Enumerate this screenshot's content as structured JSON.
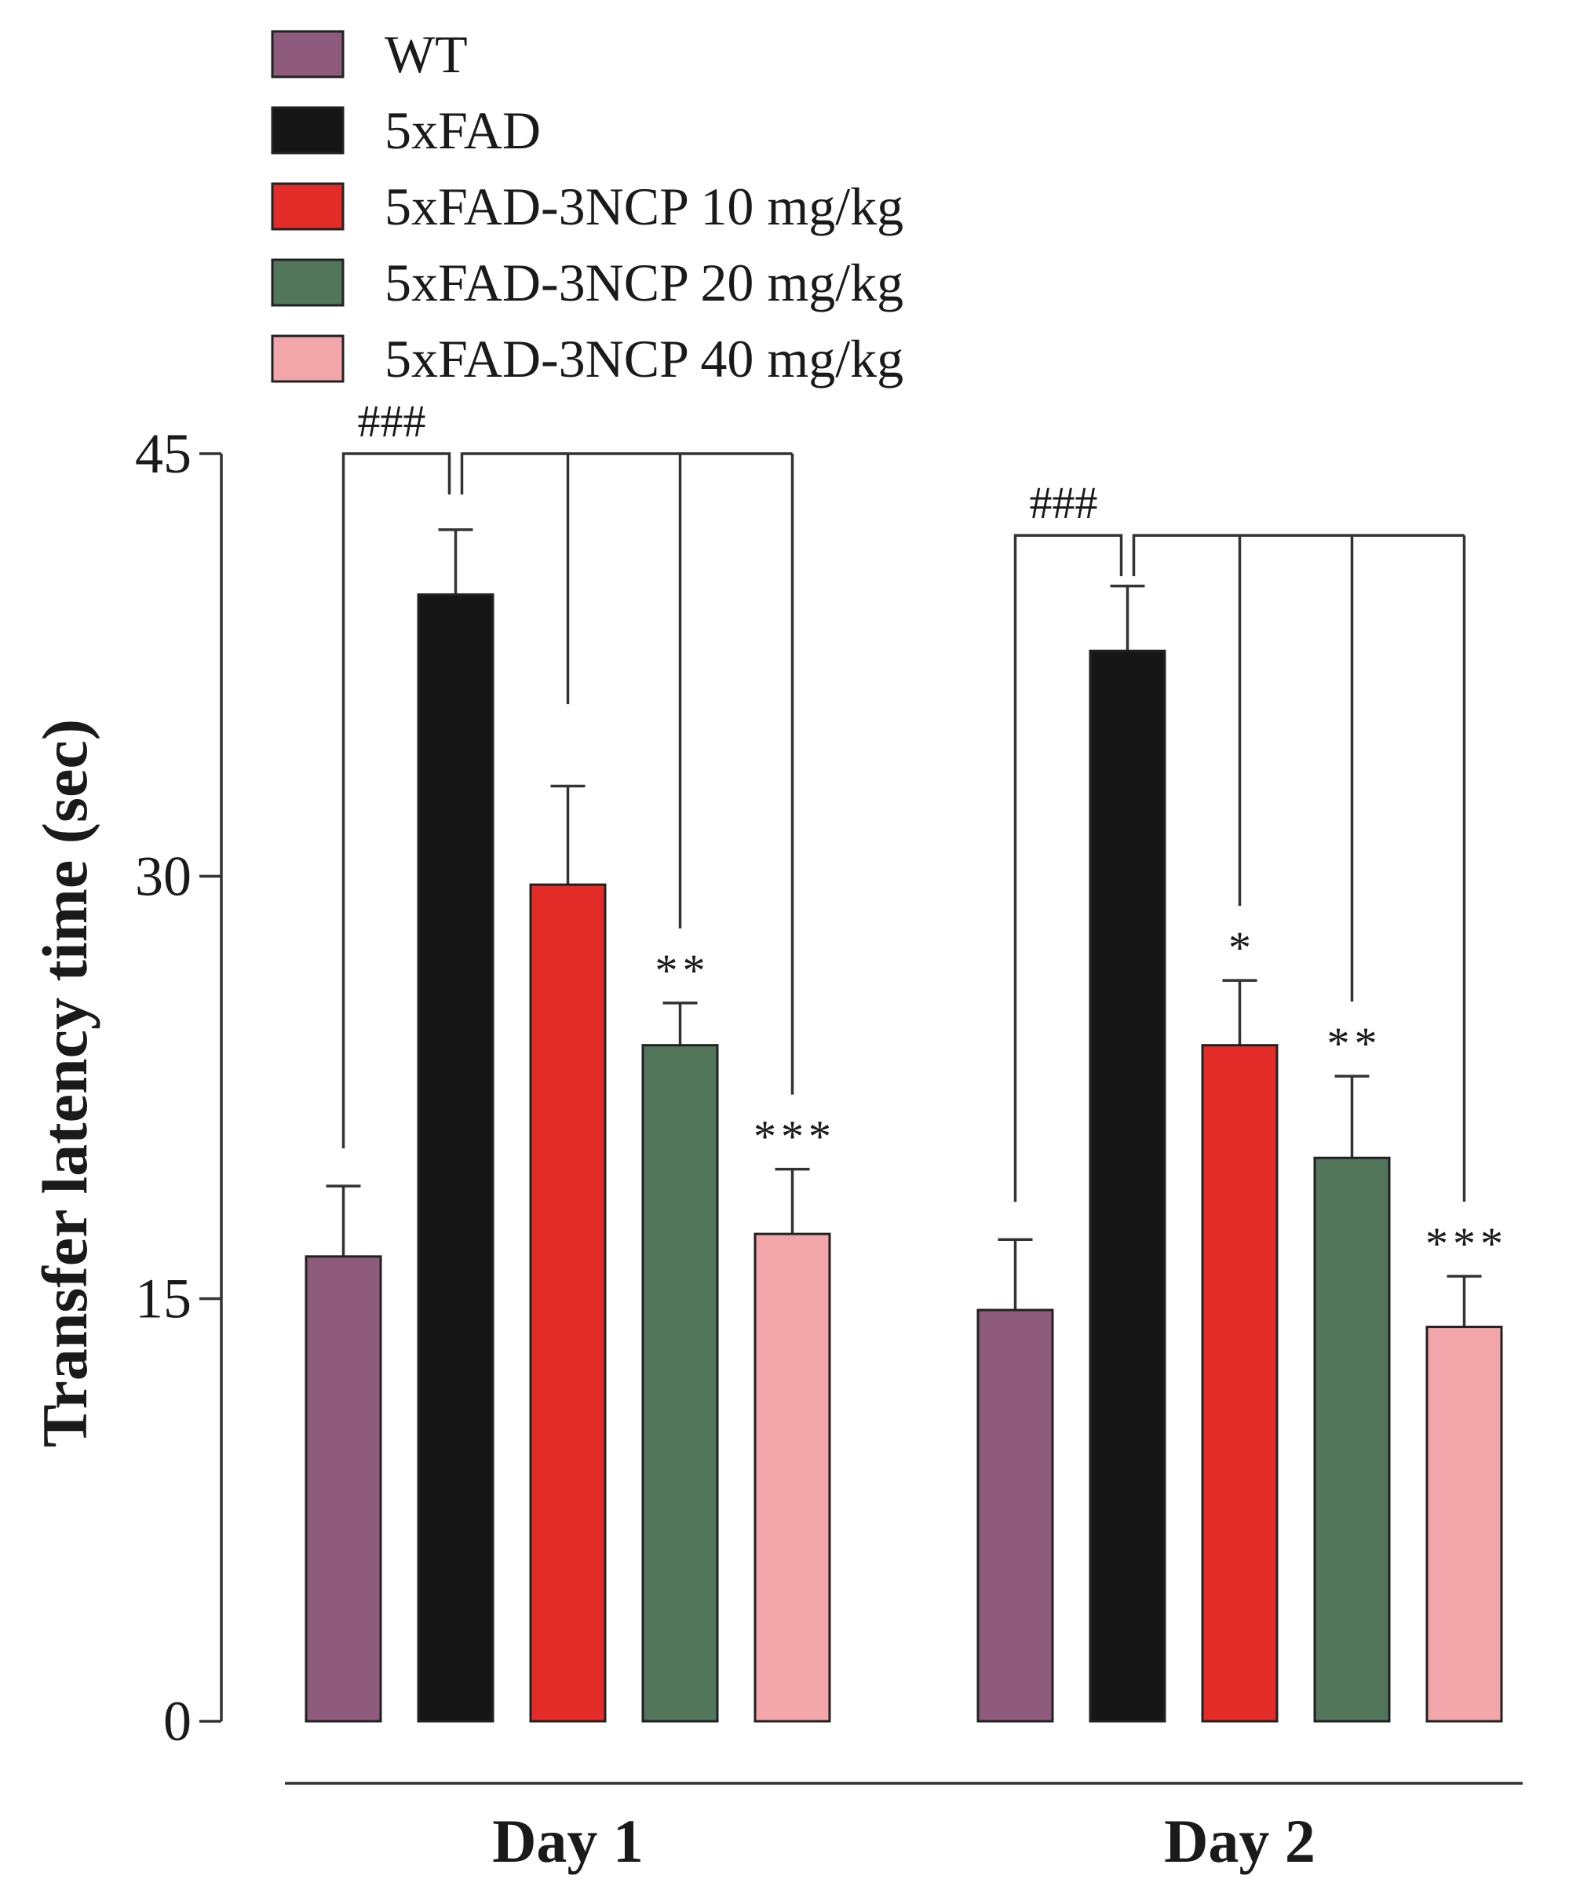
{
  "chart_data": {
    "type": "bar",
    "title": "",
    "xlabel": "",
    "ylabel": "Transfer latency time (sec)",
    "ylim": [
      0,
      45
    ],
    "yticks": [
      0,
      15,
      30,
      45
    ],
    "categories": [
      "Day 1",
      "Day 2"
    ],
    "series": [
      {
        "name": "WT",
        "color": "#8e5b7d",
        "values": [
          16.5,
          14.6
        ],
        "errors": [
          2.5,
          2.5
        ]
      },
      {
        "name": "5xFAD",
        "color": "#161616",
        "values": [
          40.0,
          38.0
        ],
        "errors": [
          2.3,
          2.3
        ]
      },
      {
        "name": "5xFAD-3NCP 10 mg/kg",
        "color": "#e32c27",
        "values": [
          29.7,
          24.0
        ],
        "errors": [
          3.5,
          2.3
        ]
      },
      {
        "name": "5xFAD-3NCP 20 mg/kg",
        "color": "#52765a",
        "values": [
          24.0,
          20.0
        ],
        "errors": [
          1.5,
          2.9
        ]
      },
      {
        "name": "5xFAD-3NCP 40 mg/kg",
        "color": "#f2a6a9",
        "values": [
          17.3,
          14.0
        ],
        "errors": [
          2.3,
          1.8
        ]
      }
    ],
    "significance": {
      "Day 1": {
        "hash": "###",
        "stars": [
          "",
          "",
          "",
          "**",
          "***"
        ]
      },
      "Day 2": {
        "hash": "###",
        "stars": [
          "",
          "",
          "*",
          "**",
          "***"
        ]
      }
    }
  }
}
